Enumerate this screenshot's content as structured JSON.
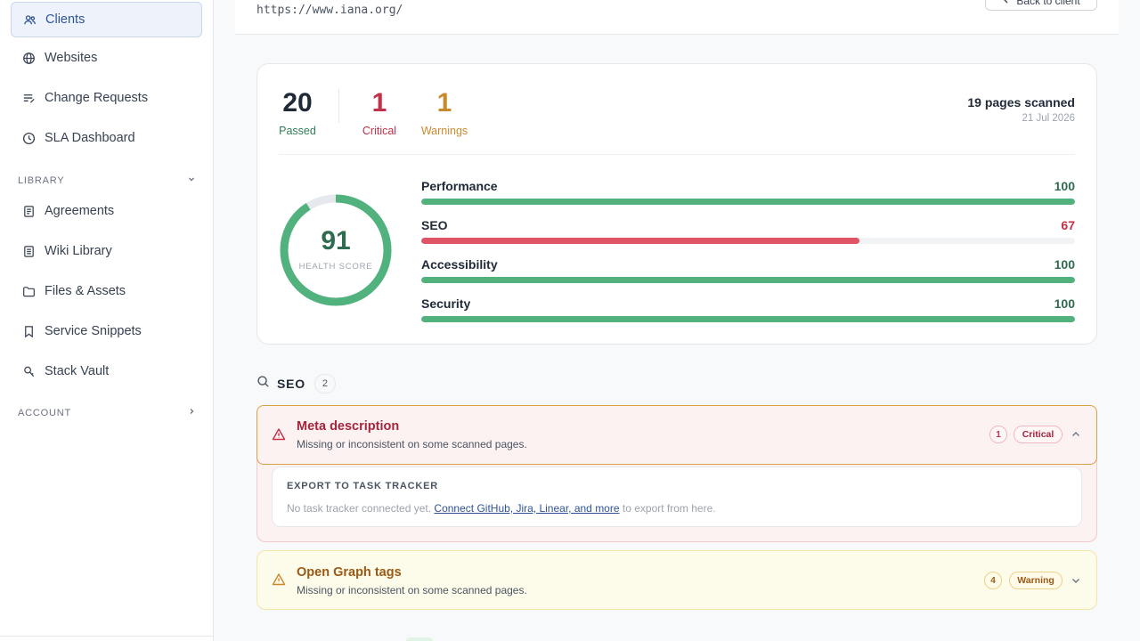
{
  "sidebar": {
    "items": [
      {
        "label": "Clients",
        "icon": "users-icon",
        "active": true
      },
      {
        "label": "Websites",
        "icon": "globe-icon"
      },
      {
        "label": "Change Requests",
        "icon": "list-edit-icon"
      },
      {
        "label": "SLA Dashboard",
        "icon": "clock-icon"
      }
    ],
    "library_label": "LIBRARY",
    "library_items": [
      {
        "label": "Agreements",
        "icon": "document-icon"
      },
      {
        "label": "Wiki Library",
        "icon": "book-icon"
      },
      {
        "label": "Files & Assets",
        "icon": "folder-icon"
      },
      {
        "label": "Service Snippets",
        "icon": "bookmark-icon"
      },
      {
        "label": "Stack Vault",
        "icon": "key-icon"
      }
    ],
    "account_label": "ACCOUNT"
  },
  "header": {
    "url": "https://www.iana.org/",
    "back_label": "Back to client"
  },
  "summary": {
    "passed": {
      "value": "20",
      "label": "Passed"
    },
    "critical": {
      "value": "1",
      "label": "Critical"
    },
    "warnings": {
      "value": "1",
      "label": "Warnings"
    },
    "pages_scanned": "19 pages scanned",
    "date": "21 Jul 2026",
    "health_score": {
      "value": "91",
      "label": "HEALTH SCORE",
      "percent": 91
    },
    "categories": [
      {
        "name": "Performance",
        "value": "100",
        "percent": 100,
        "color": "#52b27e",
        "text_color": "#2f6b4f"
      },
      {
        "name": "SEO",
        "value": "67",
        "percent": 67,
        "color": "#df5566",
        "text_color": "#c23049"
      },
      {
        "name": "Accessibility",
        "value": "100",
        "percent": 100,
        "color": "#52b27e",
        "text_color": "#2f6b4f"
      },
      {
        "name": "Security",
        "value": "100",
        "percent": 100,
        "color": "#52b27e",
        "text_color": "#2f6b4f"
      }
    ]
  },
  "seo_section": {
    "title": "SEO",
    "count": "2",
    "issues": [
      {
        "title": "Meta description",
        "subtitle": "Missing or inconsistent on some scanned pages.",
        "count": "1",
        "severity": "Critical",
        "expanded": true
      },
      {
        "title": "Open Graph tags",
        "subtitle": "Missing or inconsistent on some scanned pages.",
        "count": "4",
        "severity": "Warning",
        "expanded": false
      }
    ],
    "export": {
      "title": "EXPORT TO TASK TRACKER",
      "text_before": "No task tracker connected yet.",
      "link": "Connect GitHub, Jira, Linear, and more",
      "text_after": "to export from here."
    }
  },
  "colors": {
    "passed": "#2f7d55",
    "critical": "#c23049",
    "warning": "#c98a2e",
    "accent": "#2f5496"
  }
}
